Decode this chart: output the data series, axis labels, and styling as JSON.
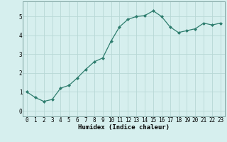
{
  "x": [
    0,
    1,
    2,
    3,
    4,
    5,
    6,
    7,
    8,
    9,
    10,
    11,
    12,
    13,
    14,
    15,
    16,
    17,
    18,
    19,
    20,
    21,
    22,
    23
  ],
  "y": [
    1.0,
    0.7,
    0.5,
    0.6,
    1.2,
    1.35,
    1.75,
    2.2,
    2.6,
    2.8,
    3.7,
    4.45,
    4.85,
    5.0,
    5.05,
    5.3,
    5.0,
    4.45,
    4.15,
    4.25,
    4.35,
    4.65,
    4.55,
    4.65
  ],
  "line_color": "#2e7d6e",
  "marker": "D",
  "marker_size": 2.0,
  "bg_color": "#d6efee",
  "grid_color": "#b8d8d6",
  "xlabel": "Humidex (Indice chaleur)",
  "xlabel_fontsize": 6.5,
  "xlim": [
    -0.5,
    23.5
  ],
  "ylim": [
    -0.3,
    5.8
  ],
  "yticks": [
    0,
    1,
    2,
    3,
    4,
    5
  ],
  "xticks": [
    0,
    1,
    2,
    3,
    4,
    5,
    6,
    7,
    8,
    9,
    10,
    11,
    12,
    13,
    14,
    15,
    16,
    17,
    18,
    19,
    20,
    21,
    22,
    23
  ],
  "tick_fontsize": 5.5,
  "linewidth": 0.9
}
